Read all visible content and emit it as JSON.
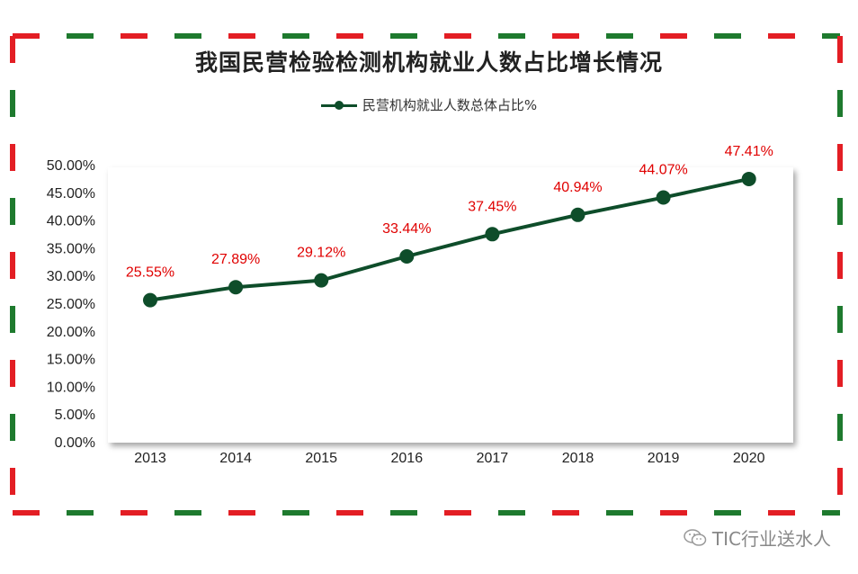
{
  "title": "我国民营检验检测机构就业人数占比增长情况",
  "watermark": "TIC行业送水人",
  "colors": {
    "series": "#0e4d2a",
    "label": "#e00000",
    "border_red": "#e31e24",
    "border_green": "#1e7a2e"
  },
  "chart_data": {
    "type": "line",
    "title": "我国民营检验检测机构就业人数占比增长情况",
    "x": [
      "2013",
      "2014",
      "2015",
      "2016",
      "2017",
      "2018",
      "2019",
      "2020"
    ],
    "series": [
      {
        "name": "民营机构就业人数总体占比%",
        "values": [
          25.55,
          27.89,
          29.12,
          33.44,
          37.45,
          40.94,
          44.07,
          47.41
        ],
        "labels": [
          "25.55%",
          "27.89%",
          "29.12%",
          "33.44%",
          "37.45%",
          "40.94%",
          "44.07%",
          "47.41%"
        ]
      }
    ],
    "ylim": [
      0,
      50
    ],
    "yticks": [
      "0.00%",
      "5.00%",
      "10.00%",
      "15.00%",
      "20.00%",
      "25.00%",
      "30.00%",
      "35.00%",
      "40.00%",
      "45.00%",
      "50.00%"
    ],
    "grid": false,
    "legend": "top-center"
  }
}
